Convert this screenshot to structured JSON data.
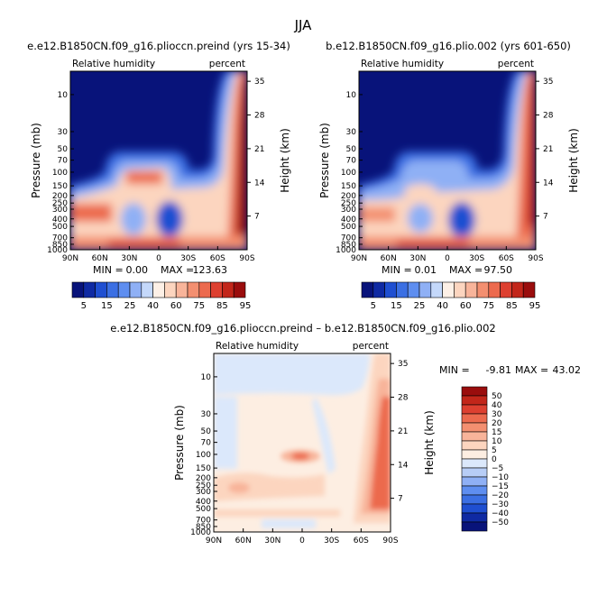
{
  "figure_title": "JJA",
  "chart_data": [
    {
      "type": "heatmap",
      "title": "e.e12.B1850CN.f09_g16.plioccn.preind (yrs 15-34)",
      "left_label": "Relative humidity",
      "right_label": "percent",
      "xlabel": "",
      "ylabel": "Pressure (mb)",
      "ylabel_right": "Height (km)",
      "x_ticks": [
        "90N",
        "60N",
        "30N",
        "0",
        "30S",
        "60S",
        "90S"
      ],
      "y_ticks": [
        "10",
        "30",
        "50",
        "70",
        "100",
        "150",
        "200",
        "250",
        "300",
        "400",
        "500",
        "700",
        "850",
        "1000"
      ],
      "y_ticks_right": [
        "35",
        "28",
        "21",
        "14",
        "7"
      ],
      "stats": {
        "min_label": "MIN =",
        "min": "0.00",
        "max_label": "MAX =",
        "max": "123.63"
      },
      "colorbar": {
        "orientation": "horizontal",
        "labels": [
          "5",
          "15",
          "25",
          "40",
          "60",
          "75",
          "85",
          "95"
        ]
      }
    },
    {
      "type": "heatmap",
      "title": "b.e12.B1850CN.f09_g16.plio.002 (yrs 601-650)",
      "left_label": "Relative humidity",
      "right_label": "percent",
      "xlabel": "",
      "ylabel": "Pressure (mb)",
      "ylabel_right": "Height (km)",
      "x_ticks": [
        "90N",
        "60N",
        "30N",
        "0",
        "30S",
        "60S",
        "90S"
      ],
      "y_ticks": [
        "10",
        "30",
        "50",
        "70",
        "100",
        "150",
        "200",
        "250",
        "300",
        "400",
        "500",
        "700",
        "850",
        "1000"
      ],
      "y_ticks_right": [
        "35",
        "28",
        "21",
        "14",
        "7"
      ],
      "stats": {
        "min_label": "MIN =",
        "min": "0.01",
        "max_label": "MAX =",
        "max": "97.50"
      },
      "colorbar": {
        "orientation": "horizontal",
        "labels": [
          "5",
          "15",
          "25",
          "40",
          "60",
          "75",
          "85",
          "95"
        ]
      }
    },
    {
      "type": "heatmap",
      "title": "e.e12.B1850CN.f09_g16.plioccn.preind – b.e12.B1850CN.f09_g16.plio.002",
      "left_label": "Relative humidity",
      "right_label": "percent",
      "xlabel": "",
      "ylabel": "Pressure (mb)",
      "ylabel_right": "Height (km)",
      "x_ticks": [
        "90N",
        "60N",
        "30N",
        "0",
        "30S",
        "60S",
        "90S"
      ],
      "y_ticks": [
        "10",
        "30",
        "50",
        "70",
        "100",
        "150",
        "200",
        "250",
        "300",
        "400",
        "500",
        "700",
        "850",
        "1000"
      ],
      "y_ticks_right": [
        "35",
        "28",
        "21",
        "14",
        "7"
      ],
      "stats": {
        "min_label": "MIN =",
        "min": "-9.81",
        "max_label": "MAX =",
        "max": "43.02"
      },
      "colorbar": {
        "orientation": "vertical",
        "labels": [
          "50",
          "40",
          "30",
          "20",
          "15",
          "10",
          "5",
          "0",
          "−5",
          "−10",
          "−15",
          "−20",
          "−30",
          "−40",
          "−50"
        ]
      }
    }
  ],
  "colors": {
    "rh_scale": [
      "#08137a",
      "#0f2aa3",
      "#1f4fd1",
      "#3b6fe3",
      "#5e8ef0",
      "#8fb0f5",
      "#c4d8fa",
      "#fdf0e6",
      "#fcd5bf",
      "#f8b49a",
      "#f38f70",
      "#ec6a4e",
      "#dd4030",
      "#c2261a",
      "#9a0d0d"
    ],
    "diff_scale": [
      "#9a0d0d",
      "#c2261a",
      "#dd4030",
      "#ec6a4e",
      "#f38f70",
      "#f8b49a",
      "#fcd5bf",
      "#fdeee2",
      "#dbe8fb",
      "#b7cdf6",
      "#8fb0f5",
      "#5e8ef0",
      "#3b6fe3",
      "#1f4fd1",
      "#0f2aa3",
      "#08137a"
    ]
  }
}
